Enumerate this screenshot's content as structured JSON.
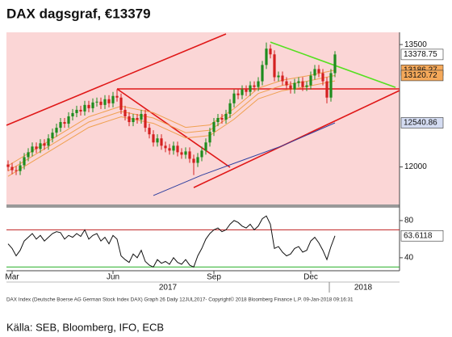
{
  "title": "DAX dagsgraf, €13379",
  "footnote": "DAX Index (Deutsche Boerse AG German Stock Index DAX) Graph 26  Daily 12JUL2017-          Copyright© 2018 Bloomberg Finance L.P.          09-Jan-2018 09:16:31",
  "source": "Källa: SEB, Bloomberg, IFO, ECB",
  "chart_data": [
    {
      "type": "candlestick",
      "background": "#fbd6d6",
      "up_color": "#1e8c1e",
      "down_color": "#d42020",
      "xlim": [
        -0.4,
        97
      ],
      "ylim": [
        11540,
        13650
      ],
      "yticks": [
        12000,
        13500
      ],
      "open": [
        12030,
        12000,
        11960,
        11950,
        12020,
        12120,
        12180,
        12250,
        12220,
        12290,
        12260,
        12350,
        12420,
        12480,
        12550,
        12530,
        12620,
        12660,
        12700,
        12680,
        12760,
        12720,
        12790,
        12800,
        12760,
        12830,
        12780,
        12870,
        12850,
        12700,
        12620,
        12550,
        12600,
        12580,
        12650,
        12480,
        12400,
        12300,
        12350,
        12260,
        12230,
        12200,
        12260,
        12180,
        12150,
        12190,
        12100,
        12050,
        12120,
        12200,
        12300,
        12430,
        12550,
        12600,
        12580,
        12650,
        12780,
        12900,
        12880,
        12950,
        12920,
        13000,
        12980,
        13050,
        13250,
        13450,
        13380,
        13100,
        13120,
        13050,
        13000,
        12950,
        13030,
        13050,
        12980,
        13000,
        13120,
        13200,
        13150,
        13050,
        12850,
        13150
      ],
      "high": [
        12080,
        12050,
        12010,
        12070,
        12170,
        12230,
        12300,
        12300,
        12340,
        12340,
        12400,
        12470,
        12530,
        12600,
        12600,
        12670,
        12710,
        12750,
        12750,
        12810,
        12810,
        12840,
        12850,
        12850,
        12880,
        12880,
        12920,
        12950,
        12900,
        12750,
        12670,
        12650,
        12650,
        12700,
        12700,
        12530,
        12450,
        12400,
        12400,
        12310,
        12280,
        12310,
        12310,
        12230,
        12240,
        12240,
        12150,
        12170,
        12250,
        12350,
        12480,
        12600,
        12650,
        12650,
        12700,
        12830,
        12950,
        12950,
        13000,
        13000,
        13050,
        13050,
        13100,
        13300,
        13525,
        13500,
        13430,
        13170,
        13170,
        13100,
        13050,
        13080,
        13100,
        13100,
        13050,
        13170,
        13250,
        13250,
        13200,
        13100,
        13200,
        13420
      ],
      "low": [
        11950,
        11910,
        11900,
        11900,
        11970,
        12070,
        12130,
        12170,
        12170,
        12210,
        12210,
        12300,
        12370,
        12430,
        12480,
        12480,
        12570,
        12610,
        12630,
        12630,
        12670,
        12670,
        12740,
        12710,
        12710,
        12730,
        12730,
        12800,
        12650,
        12570,
        12500,
        12500,
        12530,
        12530,
        12430,
        12350,
        12250,
        12250,
        12210,
        12180,
        12150,
        12150,
        12130,
        12100,
        12100,
        12050,
        11900,
        12000,
        12070,
        12150,
        12250,
        12380,
        12500,
        12530,
        12530,
        12600,
        12730,
        12830,
        12830,
        12870,
        12870,
        12930,
        12930,
        13000,
        13200,
        13330,
        13050,
        13050,
        13000,
        12950,
        12900,
        12900,
        12980,
        12930,
        12930,
        12950,
        13070,
        13100,
        13000,
        12780,
        12800,
        13100
      ],
      "close": [
        12000,
        11960,
        11950,
        12020,
        12120,
        12180,
        12250,
        12220,
        12290,
        12260,
        12350,
        12420,
        12480,
        12550,
        12530,
        12620,
        12660,
        12700,
        12680,
        12760,
        12720,
        12790,
        12800,
        12760,
        12830,
        12780,
        12870,
        12850,
        12700,
        12620,
        12550,
        12600,
        12580,
        12650,
        12480,
        12400,
        12300,
        12350,
        12260,
        12230,
        12200,
        12260,
        12180,
        12150,
        12190,
        12100,
        12050,
        12120,
        12200,
        12300,
        12430,
        12550,
        12600,
        12580,
        12650,
        12780,
        12900,
        12880,
        12950,
        12920,
        13000,
        12980,
        13050,
        13250,
        13450,
        13380,
        13100,
        13120,
        13050,
        13000,
        12950,
        13030,
        13050,
        12980,
        13000,
        13120,
        13200,
        13150,
        13050,
        12850,
        13150,
        13378.75
      ],
      "close_label_color": "#ffffff",
      "overlays": [
        {
          "color": "#f0a050",
          "label_color": "#f5a95a",
          "labeled": true,
          "x": [
            0,
            10,
            20,
            28,
            36,
            44,
            50,
            56,
            62,
            68,
            74,
            81
          ],
          "values": [
            12015,
            12315,
            12615,
            12745,
            12665,
            12485,
            12515,
            12715,
            12965,
            13065,
            13115,
            13186.27
          ]
        },
        {
          "color": "#f0a050",
          "label_color": "#f5a95a",
          "labeled": true,
          "x": [
            0,
            10,
            20,
            28,
            36,
            44,
            50,
            56,
            62,
            68,
            74,
            81
          ],
          "values": [
            11950,
            12250,
            12550,
            12680,
            12600,
            12420,
            12450,
            12650,
            12900,
            13000,
            13050,
            13120.72
          ]
        },
        {
          "color": "#f0a050",
          "label_color": "#f5a95a",
          "labeled": false,
          "x": [
            0,
            10,
            20,
            28,
            36,
            44,
            50,
            56,
            62,
            68,
            74,
            81
          ],
          "values": [
            11885,
            12185,
            12485,
            12615,
            12535,
            12355,
            12385,
            12585,
            12835,
            12935,
            12985,
            13055
          ]
        },
        {
          "color": "#3040a0",
          "label_color": "#d4dcf2",
          "labeled": true,
          "x": [
            36,
            48,
            58,
            68,
            81
          ],
          "values": [
            11650,
            11900,
            12080,
            12260,
            12540.86
          ]
        }
      ],
      "trend_lines": [
        {
          "color": "#e01818",
          "x": [
            -0.4,
            54
          ],
          "values": [
            12511,
            13630
          ]
        },
        {
          "color": "#e01818",
          "x": [
            46,
            97
          ],
          "values": [
            11747,
            12937
          ]
        },
        {
          "color": "#e01818",
          "x": [
            27,
            97
          ],
          "values": [
            12957,
            12957
          ]
        },
        {
          "color": "#e01818",
          "x": [
            27,
            55
          ],
          "values": [
            12957,
            11996
          ]
        },
        {
          "color": "#55e020",
          "x": [
            65,
            96
          ],
          "values": [
            13530,
            12975
          ]
        }
      ]
    },
    {
      "type": "line",
      "color": "#111111",
      "label_color": "#ffffff",
      "xlim": [
        -0.4,
        97
      ],
      "ylim": [
        26,
        93
      ],
      "yticks": [
        40,
        80
      ],
      "levels": [
        {
          "value": 70,
          "color": "#c02020"
        },
        {
          "value": 30,
          "color": "#2ab02a"
        }
      ],
      "values": [
        55,
        50,
        42,
        48,
        58,
        62,
        66,
        60,
        64,
        58,
        62,
        66,
        68,
        67,
        60,
        64,
        62,
        66,
        63,
        70,
        60,
        64,
        66,
        58,
        62,
        55,
        64,
        60,
        42,
        38,
        35,
        44,
        40,
        48,
        36,
        32,
        30,
        38,
        34,
        36,
        33,
        40,
        35,
        33,
        38,
        32,
        30,
        42,
        50,
        60,
        66,
        70,
        72,
        68,
        70,
        76,
        80,
        78,
        74,
        72,
        76,
        70,
        74,
        82,
        85,
        76,
        50,
        52,
        46,
        42,
        44,
        50,
        52,
        46,
        48,
        58,
        62,
        56,
        48,
        38,
        52,
        63.6118
      ],
      "xticks": [
        {
          "value": 1,
          "label": "Mar"
        },
        {
          "value": 26,
          "label": "Jun"
        },
        {
          "value": 51,
          "label": "Sep"
        },
        {
          "value": 75,
          "label": "Dec"
        }
      ],
      "year_ticks": [
        {
          "value": 39.6,
          "label": "2017"
        },
        {
          "value": 88,
          "label": "2018"
        }
      ]
    }
  ]
}
